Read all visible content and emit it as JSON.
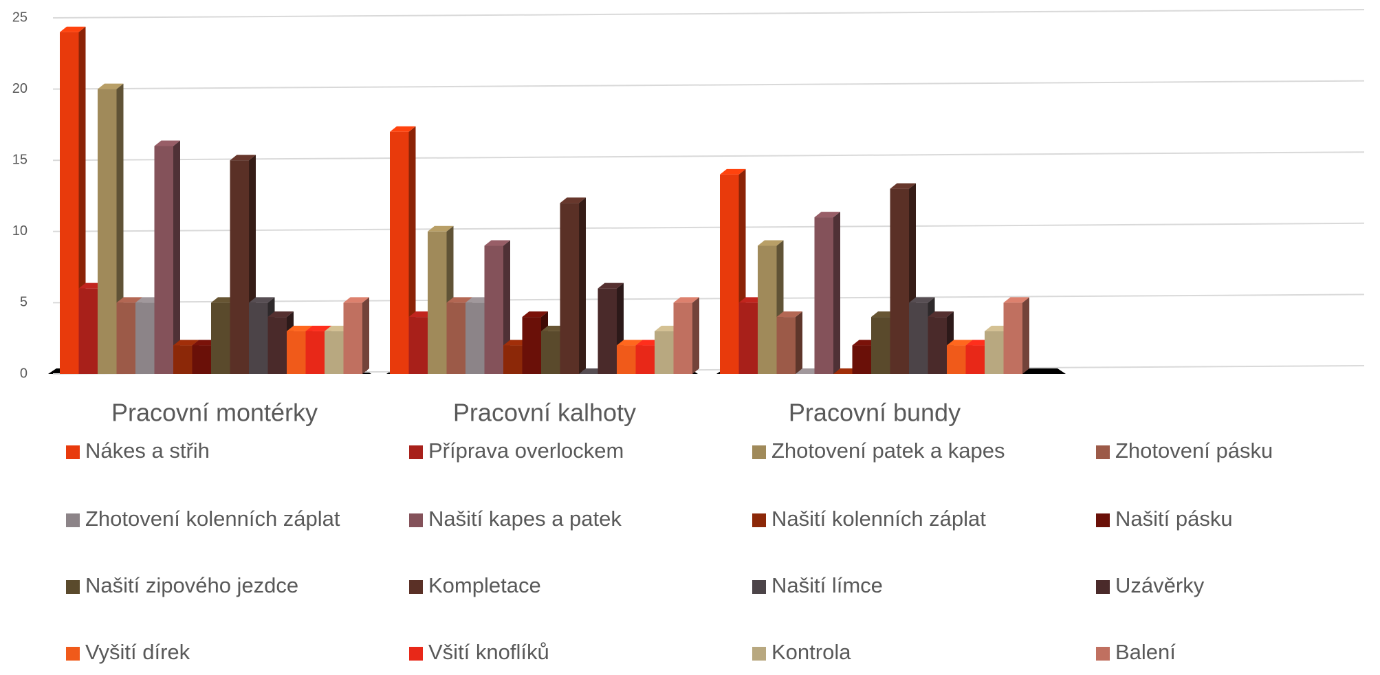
{
  "chart_data": {
    "type": "bar3d",
    "categories": [
      "Pracovní montérky",
      "Pracovní kalhoty",
      "Pracovní bundy",
      null
    ],
    "ylim": [
      0,
      25
    ],
    "yticks": [
      0,
      5,
      10,
      15,
      20,
      25
    ],
    "grid": true,
    "legend": "bottom",
    "series": [
      {
        "name": "Nákes a střih",
        "color": "#e83a0c",
        "values": [
          24,
          17,
          14,
          null
        ]
      },
      {
        "name": "Příprava overlockem",
        "color": "#a8201a",
        "values": [
          6,
          4,
          5,
          null
        ]
      },
      {
        "name": "Zhotovení patek a kapes",
        "color": "#a08a5a",
        "values": [
          20,
          10,
          9,
          null
        ]
      },
      {
        "name": "Zhotovení pásku",
        "color": "#9c5a48",
        "values": [
          5,
          5,
          4,
          null
        ]
      },
      {
        "name": "Zhotovení kolenních záplat",
        "color": "#8c8488",
        "values": [
          5,
          5,
          0,
          null
        ]
      },
      {
        "name": "Našití kapes a patek",
        "color": "#84525a",
        "values": [
          16,
          9,
          11,
          null
        ]
      },
      {
        "name": "Našití kolenních záplat",
        "color": "#8c2808",
        "values": [
          2,
          2,
          0,
          null
        ]
      },
      {
        "name": "Našití pásku",
        "color": "#6a1008",
        "values": [
          2,
          4,
          2,
          null
        ]
      },
      {
        "name": "Našití zipového jezdce",
        "color": "#5a4a2c",
        "values": [
          5,
          3,
          4,
          null
        ]
      },
      {
        "name": "Kompletace",
        "color": "#5a3026",
        "values": [
          15,
          12,
          13,
          null
        ]
      },
      {
        "name": "Našití límce",
        "color": "#4c4448",
        "values": [
          5,
          0,
          5,
          null
        ]
      },
      {
        "name": "Uzávěrky",
        "color": "#4a2a2a",
        "values": [
          4,
          6,
          4,
          null
        ]
      },
      {
        "name": "Vyšití dírek",
        "color": "#f05a1a",
        "values": [
          3,
          2,
          2,
          null
        ]
      },
      {
        "name": "Všití knoflíků",
        "color": "#e82818",
        "values": [
          3,
          2,
          2,
          null
        ]
      },
      {
        "name": "Kontrola",
        "color": "#b8a880",
        "values": [
          3,
          3,
          3,
          null
        ]
      },
      {
        "name": "Balení",
        "color": "#c07060",
        "values": [
          5,
          5,
          5,
          null
        ]
      }
    ]
  }
}
